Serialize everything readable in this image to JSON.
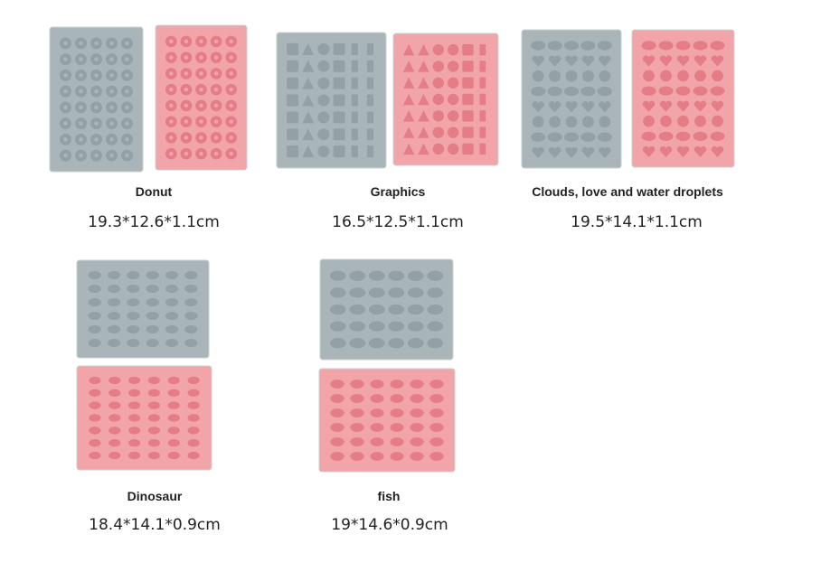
{
  "products": [
    {
      "name": "Donut",
      "size": "19.3*12.6*1.1cm"
    },
    {
      "name": "Graphics",
      "size": "16.5*12.5*1.1cm"
    },
    {
      "name": "Clouds, love and water droplets",
      "size": "19.5*14.1*1.1cm"
    },
    {
      "name": "Dinosaur",
      "size": "18.4*14.1*0.9cm"
    },
    {
      "name": "fish",
      "size": "19*14.6*0.9cm"
    }
  ]
}
